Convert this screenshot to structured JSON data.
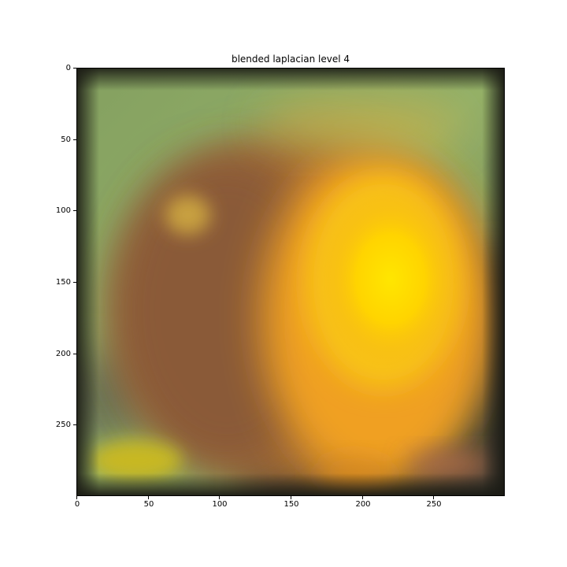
{
  "title": "blended laplacian level 4",
  "image": {
    "description_colors": {
      "background_green": "#8fa866",
      "brown_fruit": "#8a5a36",
      "orange_fruit": "#f0a020",
      "yellow_highlight": "#ffd800",
      "dark_edge": "#1e1e1a"
    }
  },
  "axes": {
    "xlim": [
      0,
      300
    ],
    "ylim": [
      300,
      0
    ],
    "x_ticks": [
      {
        "value": 0,
        "label": "0"
      },
      {
        "value": 50,
        "label": "50"
      },
      {
        "value": 100,
        "label": "100"
      },
      {
        "value": 150,
        "label": "150"
      },
      {
        "value": 200,
        "label": "200"
      },
      {
        "value": 250,
        "label": "250"
      }
    ],
    "y_ticks": [
      {
        "value": 0,
        "label": "0"
      },
      {
        "value": 50,
        "label": "50"
      },
      {
        "value": 100,
        "label": "100"
      },
      {
        "value": 150,
        "label": "150"
      },
      {
        "value": 200,
        "label": "200"
      },
      {
        "value": 250,
        "label": "250"
      }
    ]
  }
}
